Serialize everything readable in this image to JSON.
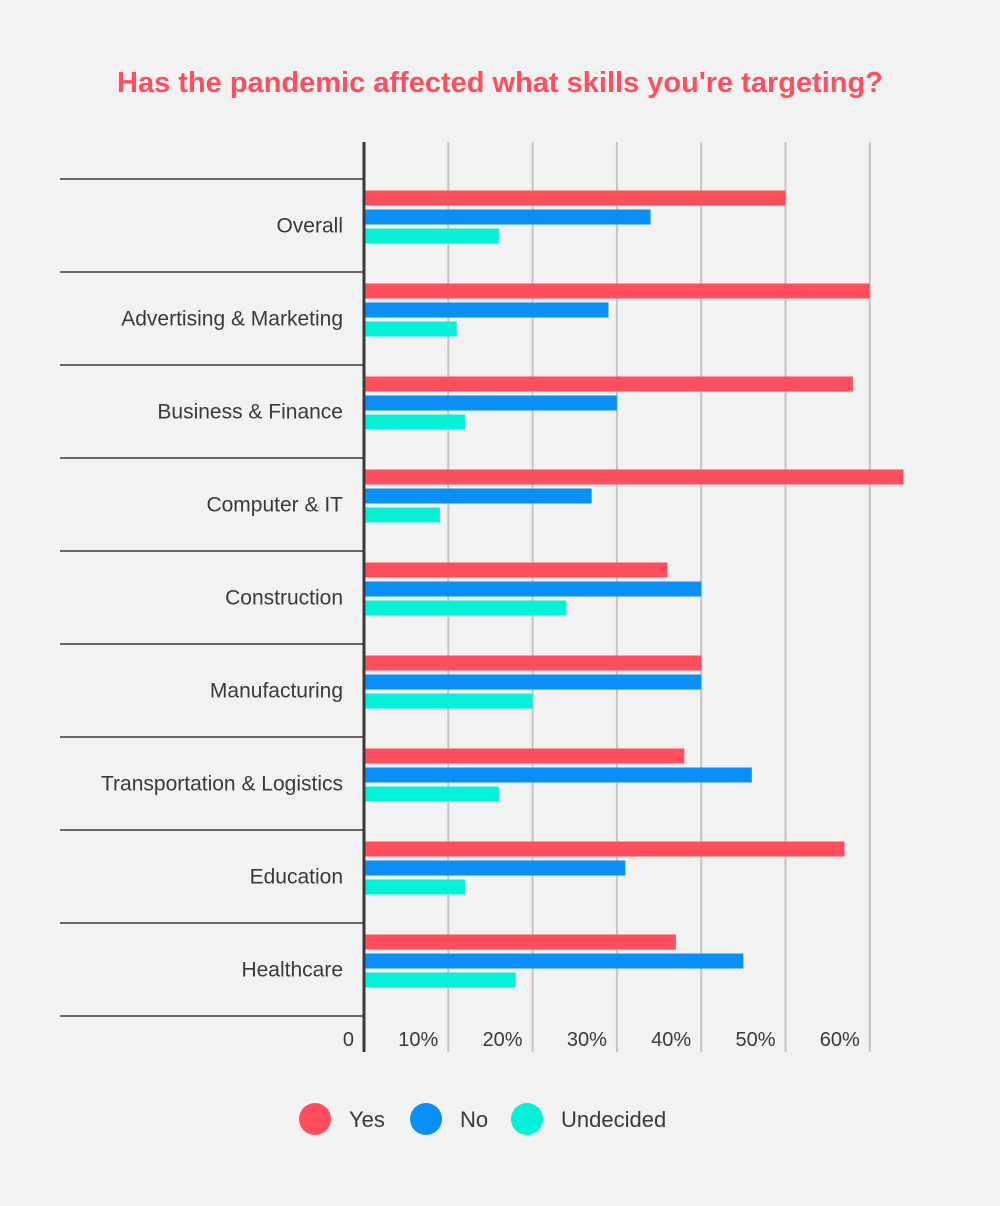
{
  "chart_data": {
    "type": "bar",
    "orientation": "horizontal",
    "title": "Has the pandemic affected what skills you're targeting?",
    "categories": [
      "Overall",
      "Advertising & Marketing",
      "Business & Finance",
      "Computer & IT",
      "Construction",
      "Manufacturing",
      "Transportation & Logistics",
      "Education",
      "Healthcare"
    ],
    "series": [
      {
        "name": "Yes",
        "color": "#ff4f5e",
        "values": [
          50,
          60,
          58,
          64,
          36,
          40,
          38,
          57,
          37
        ]
      },
      {
        "name": "No",
        "color": "#0a8ff7",
        "values": [
          34,
          29,
          30,
          27,
          40,
          40,
          46,
          31,
          45
        ]
      },
      {
        "name": "Undecided",
        "color": "#07f0d8",
        "values": [
          16,
          11,
          12,
          9,
          24,
          20,
          16,
          12,
          18
        ]
      }
    ],
    "x_ticks": [
      "0",
      "10%",
      "20%",
      "30%",
      "40%",
      "50%",
      "60%"
    ],
    "x_tick_values": [
      0,
      10,
      20,
      30,
      40,
      50,
      60
    ],
    "xlim": [
      0,
      65
    ],
    "grid": true,
    "legend_position": "bottom",
    "colors": {
      "title": "#ff4f5e",
      "axis": "#3a3a3a",
      "grid": "#c4c4c4",
      "separator": "#3a3a3a"
    }
  }
}
